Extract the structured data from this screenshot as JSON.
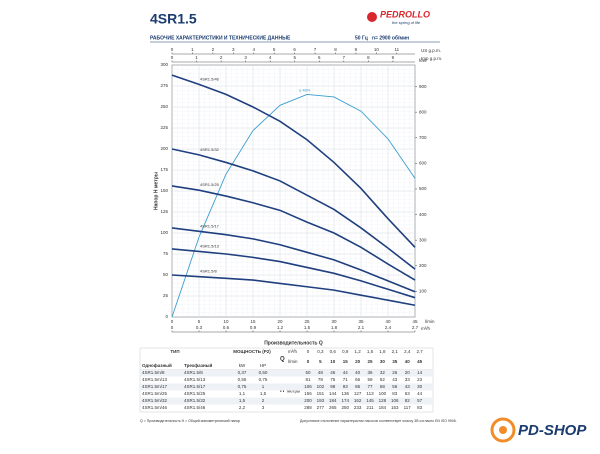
{
  "header": {
    "title": "4SR1.5",
    "brand": "PEDROLLO",
    "slogan": "the spring of life",
    "subtitle": "РАБОЧИЕ ХАРАКТЕРИСТИКИ И ТЕХНИЧЕСКИЕ ДАННЫЕ",
    "frequency": "50 Гц",
    "speed": "n= 2900 об/мин"
  },
  "chart_data": {
    "type": "line",
    "y_label": "Напор H метры",
    "x_label": "Производительность Q",
    "y2_label": "feet",
    "x_unit": "l/min",
    "m3h_unit": "m³/h",
    "us_unit": "US g.p.m.",
    "imp_unit": "Imp g.p.m.",
    "x": [
      0,
      5,
      10,
      15,
      20,
      25,
      30,
      35,
      40,
      45
    ],
    "xlim": [
      0,
      45
    ],
    "xticks": [
      0,
      5,
      10,
      15,
      20,
      25,
      30,
      35,
      40,
      45
    ],
    "m3hlim": [
      0,
      2.7
    ],
    "m3hticks": [
      0,
      0.3,
      0.6,
      0.9,
      1.2,
      1.5,
      1.8,
      2.1,
      2.4,
      2.7
    ],
    "uslim": [
      0,
      11.89
    ],
    "usticks": [
      0,
      1,
      2,
      3,
      4,
      5,
      6,
      7,
      8,
      9,
      10,
      11
    ],
    "implim": [
      0,
      9.9
    ],
    "impticks": [
      0,
      1,
      2,
      3,
      4,
      5,
      6,
      7,
      8,
      9
    ],
    "ylim": [
      0,
      300
    ],
    "yticks": [
      0,
      25,
      50,
      75,
      100,
      125,
      150,
      175,
      200,
      225,
      250,
      275,
      300
    ],
    "y2lim": [
      0,
      984.25
    ],
    "y2ticks": [
      100,
      200,
      300,
      400,
      500,
      600,
      700,
      800,
      900
    ],
    "grid": true,
    "series": [
      {
        "name": "4SR1.5/8",
        "color": "#1f3f7f",
        "values": [
          50,
          48,
          46,
          44,
          40,
          36,
          32,
          26,
          20,
          14
        ]
      },
      {
        "name": "4SR1.5/13",
        "color": "#1f3f7f",
        "values": [
          81,
          78,
          75,
          71,
          66,
          59,
          52,
          43,
          33,
          23
        ]
      },
      {
        "name": "4SR1.5/17",
        "color": "#1f3f7f",
        "values": [
          106,
          102,
          98,
          93,
          86,
          77,
          68,
          56,
          43,
          30
        ]
      },
      {
        "name": "4SR1.5/25",
        "color": "#1f3f7f",
        "values": [
          156,
          151,
          144,
          136,
          127,
          113,
          100,
          83,
          63,
          44
        ]
      },
      {
        "name": "4SR1.5/32",
        "color": "#1f3f7f",
        "values": [
          200,
          193,
          184,
          174,
          162,
          145,
          128,
          106,
          82,
          57
        ]
      },
      {
        "name": "4SR1.5/46",
        "color": "#1f3f7f",
        "values": [
          288,
          277,
          265,
          250,
          233,
          211,
          184,
          153,
          117,
          83
        ]
      }
    ],
    "efficiency": {
      "label": "η 48%",
      "color": "#3a9fd0",
      "values": [
        0,
        95,
        170,
        222,
        252,
        265,
        262,
        245,
        212,
        165
      ]
    }
  },
  "table": {
    "type_header": "ТИП",
    "single_phase": "Однофазный",
    "three_phase": "Трехфазный",
    "power_header": "МОЩНОСТЬ (P2)",
    "kw": "kW",
    "hp": "HP",
    "q": "Q",
    "m3h": "m³/h",
    "lmin": "l/min",
    "h": "H",
    "h_unit": "метры",
    "q_m3h": [
      "0",
      "0,3",
      "0,6",
      "0,9",
      "1,2",
      "1,5",
      "1,8",
      "2,1",
      "2,4",
      "2,7"
    ],
    "rows": [
      {
        "single": "4SR1.5m/8",
        "kw": "0,37",
        "hp": "0,50"
      },
      {
        "single": "4SR1.5m/13",
        "kw": "0,55",
        "hp": "0,75"
      },
      {
        "single": "4SR1.5m/17",
        "kw": "0,75",
        "hp": "1"
      },
      {
        "single": "4SR1.5m/25",
        "kw": "1,1",
        "hp": "1,5"
      },
      {
        "single": "4SR1.5m/32",
        "kw": "1,5",
        "hp": "2"
      },
      {
        "single": "4SR1.5m/46",
        "kw": "2,2",
        "hp": "3"
      }
    ]
  },
  "footer": {
    "legend": "Q = Производительность   H = Общий манометрический напор",
    "note": "Допустимое отклонение характеристик насосов соответствует классу 3В согласно EN ISO 9906."
  },
  "shop": {
    "logo": "PD-SHOP"
  }
}
